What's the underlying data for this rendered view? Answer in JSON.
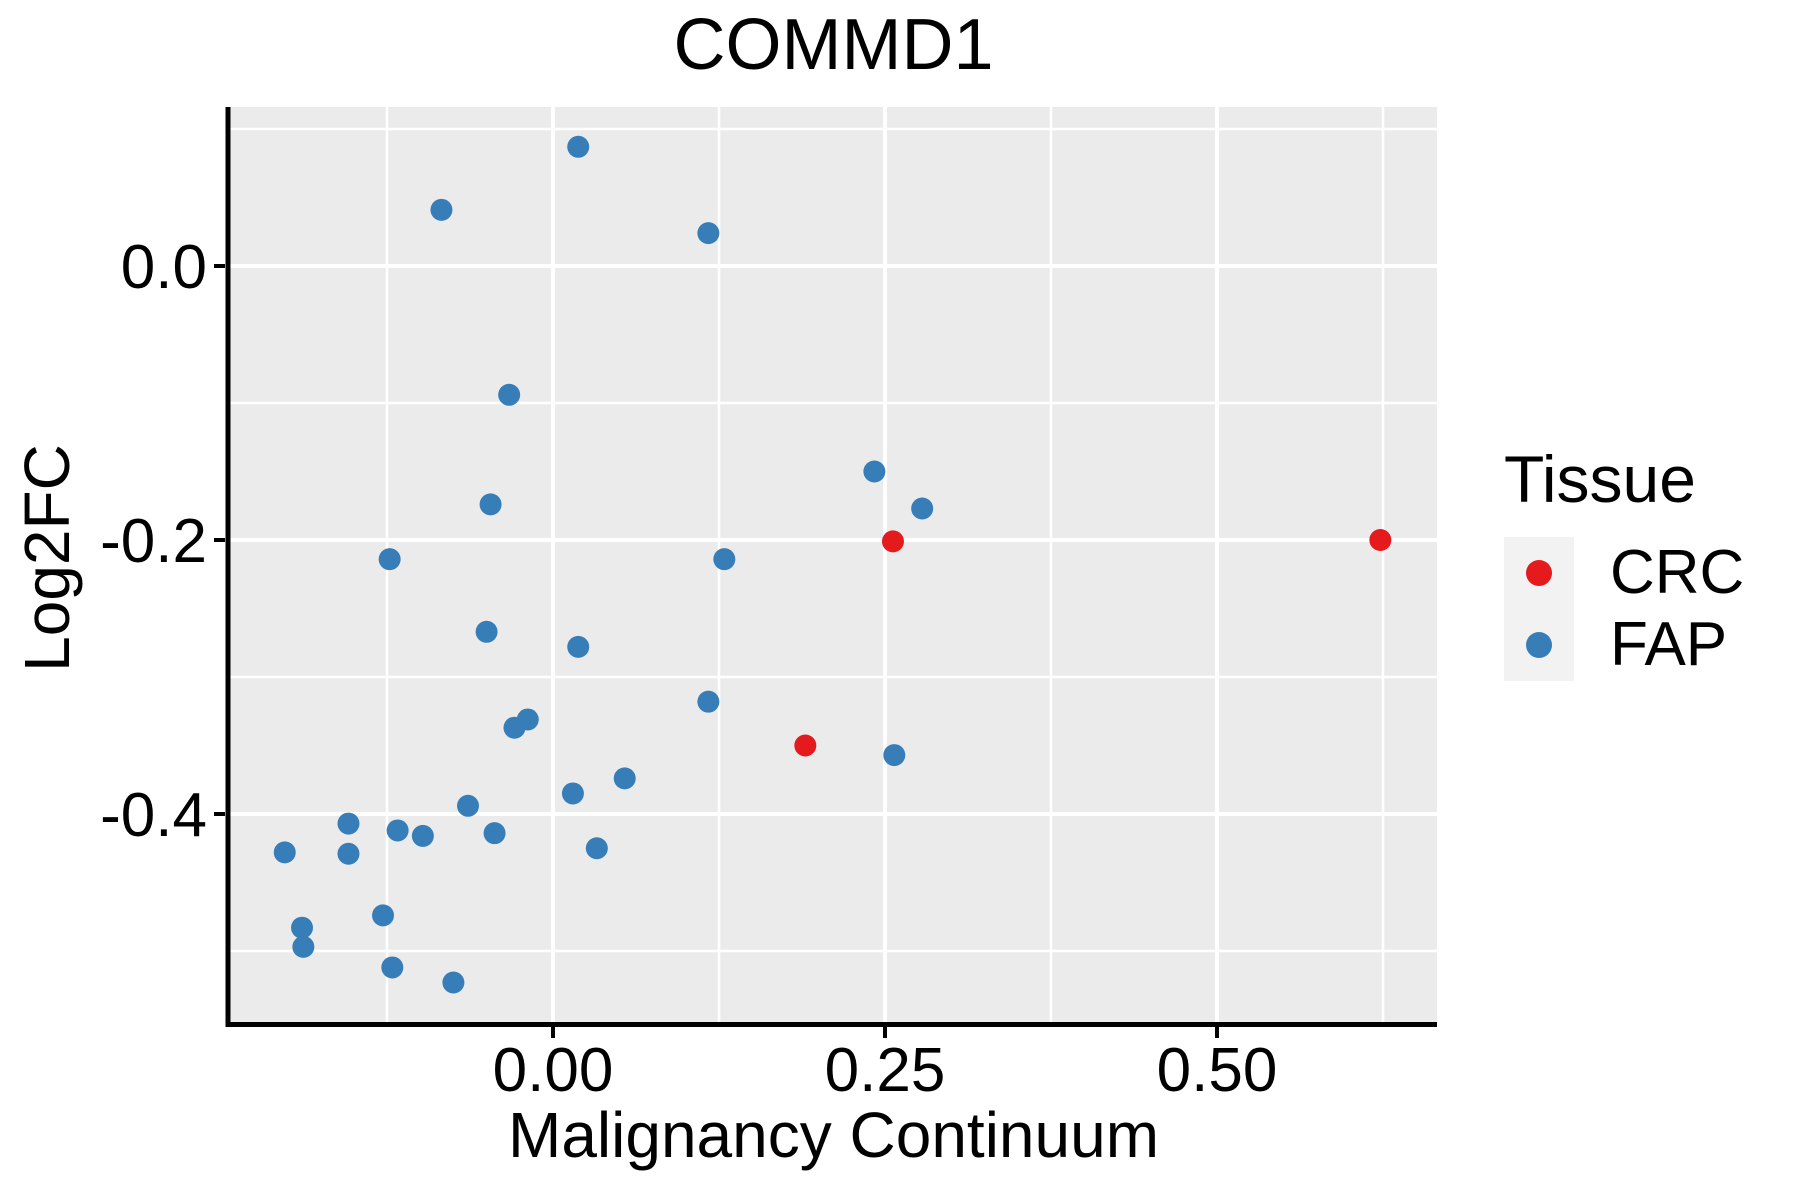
{
  "chart_data": {
    "type": "scatter",
    "title": "COMMD1",
    "xlabel": "Malignancy Continuum",
    "ylabel": "Log2FC",
    "xlim": [
      -0.243,
      0.666
    ],
    "ylim": [
      -0.554,
      0.116
    ],
    "grid": "white major and minor gridlines on gray panel",
    "legend_position": "right",
    "x_axis": {
      "major_ticks": [
        {
          "value": 0.0,
          "label": "0.00"
        },
        {
          "value": 0.25,
          "label": "0.25"
        },
        {
          "value": 0.5,
          "label": "0.50"
        }
      ],
      "minor_ticks": [
        -0.125,
        0.125,
        0.375,
        0.625
      ]
    },
    "y_axis": {
      "major_ticks": [
        {
          "value": 0.0,
          "label": "0.0"
        },
        {
          "value": -0.2,
          "label": "-0.2"
        },
        {
          "value": -0.4,
          "label": "-0.4"
        }
      ],
      "minor_ticks": [
        0.1,
        -0.1,
        -0.3,
        -0.5
      ]
    },
    "legend": {
      "title": "Tissue",
      "entries": [
        {
          "label": "CRC",
          "color": "#E41A1C"
        },
        {
          "label": "FAP",
          "color": "#377EB8"
        }
      ]
    },
    "series": [
      {
        "name": "CRC",
        "color": "#E41A1C",
        "points": [
          [
            0.19,
            -0.35
          ],
          [
            0.256,
            -0.201
          ],
          [
            0.623,
            -0.2
          ]
        ]
      },
      {
        "name": "FAP",
        "color": "#377EB8",
        "points": [
          [
            0.019,
            0.087
          ],
          [
            -0.084,
            0.041
          ],
          [
            0.117,
            0.024
          ],
          [
            -0.033,
            -0.094
          ],
          [
            -0.047,
            -0.174
          ],
          [
            -0.123,
            -0.214
          ],
          [
            0.129,
            -0.214
          ],
          [
            -0.05,
            -0.267
          ],
          [
            0.019,
            -0.278
          ],
          [
            0.117,
            -0.318
          ],
          [
            -0.029,
            -0.337
          ],
          [
            -0.019,
            -0.331
          ],
          [
            0.242,
            -0.15
          ],
          [
            0.278,
            -0.177
          ],
          [
            0.257,
            -0.357
          ],
          [
            0.054,
            -0.374
          ],
          [
            0.015,
            -0.385
          ],
          [
            -0.064,
            -0.394
          ],
          [
            -0.154,
            -0.407
          ],
          [
            -0.117,
            -0.412
          ],
          [
            -0.098,
            -0.416
          ],
          [
            -0.044,
            -0.414
          ],
          [
            0.033,
            -0.425
          ],
          [
            -0.202,
            -0.428
          ],
          [
            -0.154,
            -0.429
          ],
          [
            -0.128,
            -0.474
          ],
          [
            -0.189,
            -0.483
          ],
          [
            -0.188,
            -0.497
          ],
          [
            -0.121,
            -0.512
          ],
          [
            -0.075,
            -0.523
          ]
        ]
      }
    ],
    "colors": {
      "panel_background": "#EBEBEB",
      "gridline": "#FFFFFF",
      "axis_line": "#000000",
      "text": "#000000",
      "legend_key_background": "#F2F2F2"
    }
  }
}
